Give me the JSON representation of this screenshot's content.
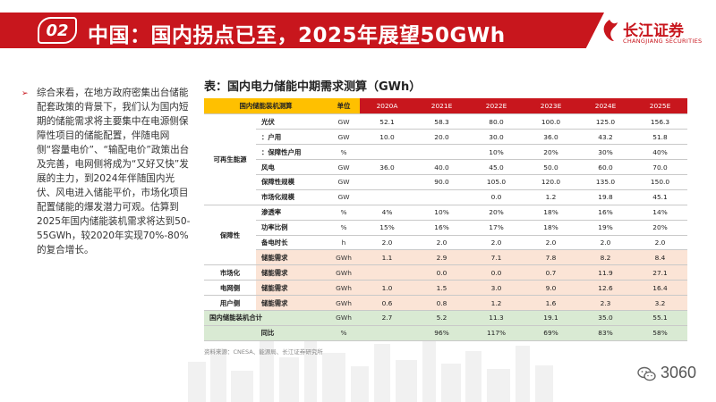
{
  "header": {
    "number": "02",
    "title": "中国：国内拐点已至，2025年展望50GWh",
    "logo_cn": "长江证券",
    "logo_en": "CHANGJIANG SECURITIES"
  },
  "summary": "综合来看，在地方政府密集出台储能配套政策的背景下，我们认为国内短期的储能需求将主要集中在电源侧保障性项目的储能配置，伴随电网侧“容量电价”、“输配电价”政策出台及完善，电网侧将成为“又好又快”发展的主力，到2024年伴随国内光伏、风电进入储能平价，市场化项目配置储能的爆发潜力可观。估算到2025年国内储能装机需求将达到50-55GWh，较2020年实现70%-80%的复合增长。",
  "table": {
    "title": "表：国内电力储能中期需求测算（GWh）",
    "header": {
      "label": "国内储能装机测算",
      "unit": "单位",
      "years": [
        "2020A",
        "2021E",
        "2022E",
        "2023E",
        "2024E",
        "2025E"
      ]
    },
    "categories": {
      "renewable": "可再生能源",
      "guarantee": "保障性",
      "market": "市场化",
      "grid": "电网侧",
      "user": "用户侧"
    },
    "rows": [
      {
        "item": "光伏",
        "unit": "GW",
        "values": [
          "52.1",
          "58.3",
          "80.0",
          "100.0",
          "125.0",
          "156.3"
        ]
      },
      {
        "item": "：户用",
        "unit": "GW",
        "values": [
          "10.0",
          "20.0",
          "30.0",
          "36.0",
          "43.2",
          "51.8"
        ]
      },
      {
        "item": "：保障性户用",
        "unit": "%",
        "values": [
          "",
          "",
          "10%",
          "20%",
          "30%",
          "40%"
        ]
      },
      {
        "item": "风电",
        "unit": "GW",
        "values": [
          "36.0",
          "40.0",
          "45.0",
          "50.0",
          "60.0",
          "70.0"
        ]
      },
      {
        "item": "保障性规模",
        "unit": "GW",
        "values": [
          "",
          "90.0",
          "105.0",
          "120.0",
          "135.0",
          "150.0"
        ]
      },
      {
        "item": "市场化规模",
        "unit": "GW",
        "values": [
          "",
          "",
          "0.0",
          "1.2",
          "19.8",
          "45.1"
        ]
      },
      {
        "item": "渗透率",
        "unit": "%",
        "values": [
          "4%",
          "10%",
          "20%",
          "18%",
          "16%",
          "14%"
        ]
      },
      {
        "item": "功率比例",
        "unit": "%",
        "values": [
          "15%",
          "16%",
          "17%",
          "18%",
          "19%",
          "20%"
        ]
      },
      {
        "item": "备电时长",
        "unit": "h",
        "values": [
          "2.0",
          "2.0",
          "2.0",
          "2.0",
          "2.0",
          "2.0"
        ]
      },
      {
        "item": "储能需求",
        "unit": "GWh",
        "values": [
          "1.1",
          "2.9",
          "7.1",
          "7.8",
          "8.2",
          "8.4"
        ]
      },
      {
        "item": "储能需求",
        "unit": "GWh",
        "values": [
          "",
          "0.0",
          "0.0",
          "0.7",
          "11.9",
          "27.1"
        ]
      },
      {
        "item": "储能需求",
        "unit": "GWh",
        "values": [
          "1.0",
          "1.5",
          "3.0",
          "9.0",
          "12.6",
          "16.4"
        ]
      },
      {
        "item": "储能需求",
        "unit": "GWh",
        "values": [
          "0.6",
          "0.8",
          "1.2",
          "1.6",
          "2.3",
          "3.2"
        ]
      }
    ],
    "total": {
      "item": "国内储能装机合计",
      "unit": "GWh",
      "values": [
        "2.7",
        "5.2",
        "11.3",
        "19.1",
        "35.0",
        "55.1"
      ]
    },
    "growth": {
      "item": "同比",
      "unit": "%",
      "values": [
        "",
        "96%",
        "117%",
        "69%",
        "83%",
        "58%"
      ]
    },
    "source": "资料来源：CNESA、能源局、长江证券研究所"
  },
  "watermark": {
    "text": "3060"
  },
  "colors": {
    "brand_red": "#c8161d",
    "header_yellow": "#ffc000",
    "peach": "#fbe4d6",
    "green": "#d9ead3"
  }
}
